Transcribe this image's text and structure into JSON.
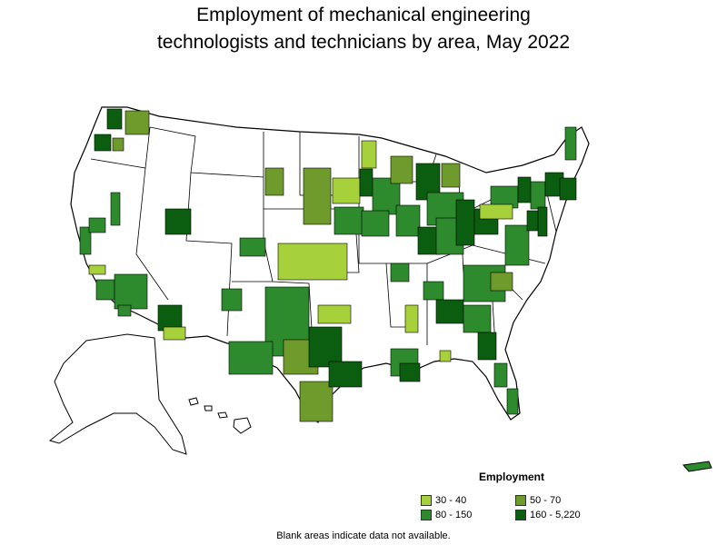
{
  "title_line1": "Employment of mechanical engineering",
  "title_line2": "technologists and technicians by area, May 2022",
  "legend": {
    "title": "Employment",
    "items": [
      {
        "label": "30 - 40",
        "color": "#a6d13a"
      },
      {
        "label": "50 - 70",
        "color": "#6f9a2c"
      },
      {
        "label": "80 - 150",
        "color": "#2d8a2d"
      },
      {
        "label": "160 - 5,220",
        "color": "#0b5e10"
      }
    ]
  },
  "footnote": "Blank areas indicate data not available."
}
